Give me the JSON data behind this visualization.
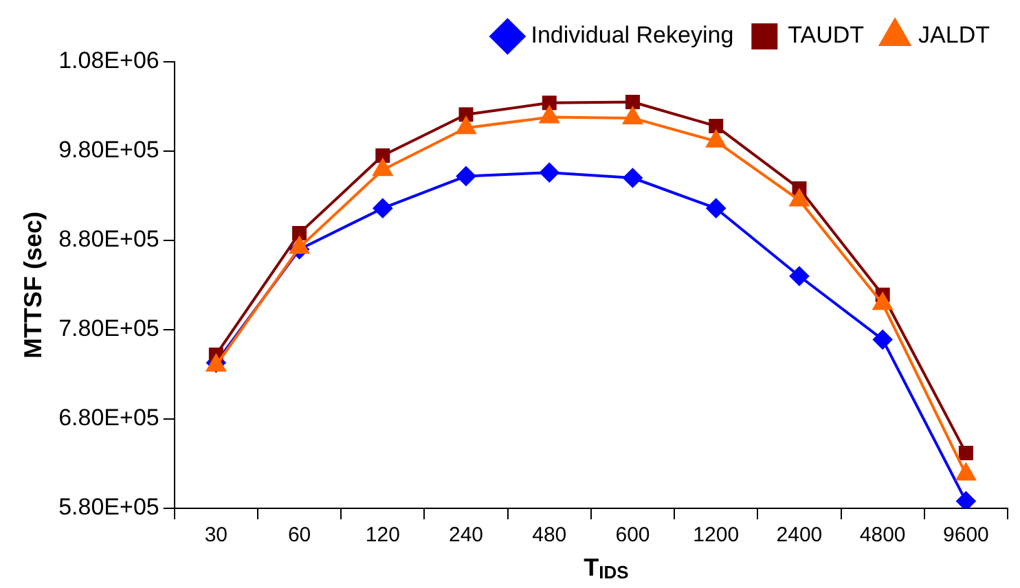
{
  "chart_data": {
    "type": "line",
    "xlabel": "T$_{IDS}$",
    "ylabel": "MTTSF (sec)",
    "categories": [
      "30",
      "60",
      "120",
      "240",
      "480",
      "600",
      "1200",
      "2400",
      "4800",
      "9600"
    ],
    "series": [
      {
        "name": "Individual Rekeying",
        "color": "#0000ff",
        "marker": "diamond",
        "values": [
          743000,
          870000,
          916000,
          952000,
          956000,
          950000,
          916000,
          840000,
          769000,
          588000
        ]
      },
      {
        "name": "TAUDT",
        "color": "#800000",
        "marker": "square",
        "values": [
          752000,
          888000,
          975000,
          1021000,
          1034000,
          1035000,
          1008000,
          938000,
          819000,
          642000
        ]
      },
      {
        "name": "JALDT",
        "color": "#ff6600",
        "marker": "triangle",
        "values": [
          740000,
          872000,
          959000,
          1006000,
          1018000,
          1017000,
          991000,
          925000,
          809000,
          618000
        ]
      }
    ],
    "ylim": [
      580000,
      1080000
    ],
    "yticks": [
      {
        "value": 580000,
        "label": "5.80E+05"
      },
      {
        "value": 680000,
        "label": "6.80E+05"
      },
      {
        "value": 780000,
        "label": "7.80E+05"
      },
      {
        "value": 880000,
        "label": "8.80E+05"
      },
      {
        "value": 980000,
        "label": "9.80E+05"
      },
      {
        "value": 1080000,
        "label": "1.08E+06"
      }
    ],
    "grid": false,
    "legend": "top right",
    "line_style": "solid"
  }
}
